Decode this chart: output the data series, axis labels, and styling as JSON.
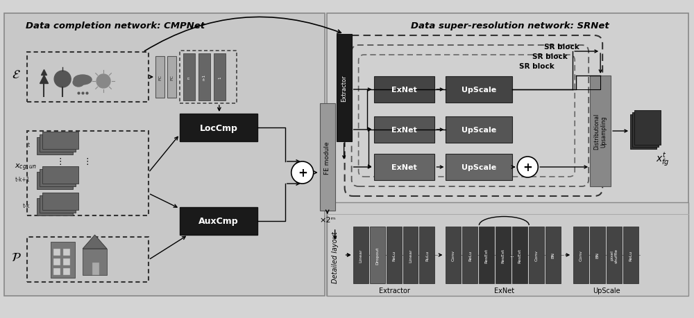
{
  "bg_color": "#d4d4d4",
  "left_panel_color": "#c8c8c8",
  "right_panel_color": "#d0d0d0",
  "dark_box_color": "#1a1a1a",
  "extractor_box_color": "#1a1a1a",
  "exnet_color_top": "#444444",
  "exnet_color_mid": "#555555",
  "exnet_color_bot": "#666666",
  "upscale_color_top": "#444444",
  "upscale_color_mid": "#555555",
  "upscale_color_bot": "#666666",
  "dist_box_color": "#888888",
  "fe_box_color": "#999999",
  "fc_box_color": "#aaaaaa",
  "emb_box_color": "#777777",
  "tensor_color": "#555555",
  "title_left": "Data completion network: CMPNet",
  "title_right": "Data super-resolution network: SRNet",
  "loccmp_label": "LocCmp",
  "auxcmp_label": "AuxCmp",
  "fe_module_label": "FE module",
  "extractor_label": "Extractor",
  "x2m_label": "×2ᵐ",
  "dist_upsampling_label": "Distributional\nUpsampling",
  "detailed_layout_label": "Detailed layout",
  "epsilon_label": "ε",
  "xcg_label": "$\\mathcal{x}_{cg,un}$",
  "p_label": "$\\mathcal{P}$",
  "xfg_label": "$x^t_{fg}$",
  "extractor_blocks": [
    "Linear",
    "Dropout",
    "ReLu",
    "Linear",
    "RuLu"
  ],
  "extractor_block_colors": [
    "#444444",
    "#666666",
    "#444444",
    "#444444",
    "#444444"
  ],
  "exnet_blocks": [
    "Conv",
    "ReLu",
    "ResExt",
    "ResExt",
    "ResExt",
    "Conv",
    "BN"
  ],
  "exnet_block_colors": [
    "#444444",
    "#444444",
    "#333333",
    "#333333",
    "#333333",
    "#444444",
    "#444444"
  ],
  "upscale_blocks": [
    "Conv",
    "BN",
    "pixel\nshuffle",
    "ReLu"
  ],
  "upscale_block_colors": [
    "#444444",
    "#444444",
    "#444444",
    "#444444"
  ]
}
